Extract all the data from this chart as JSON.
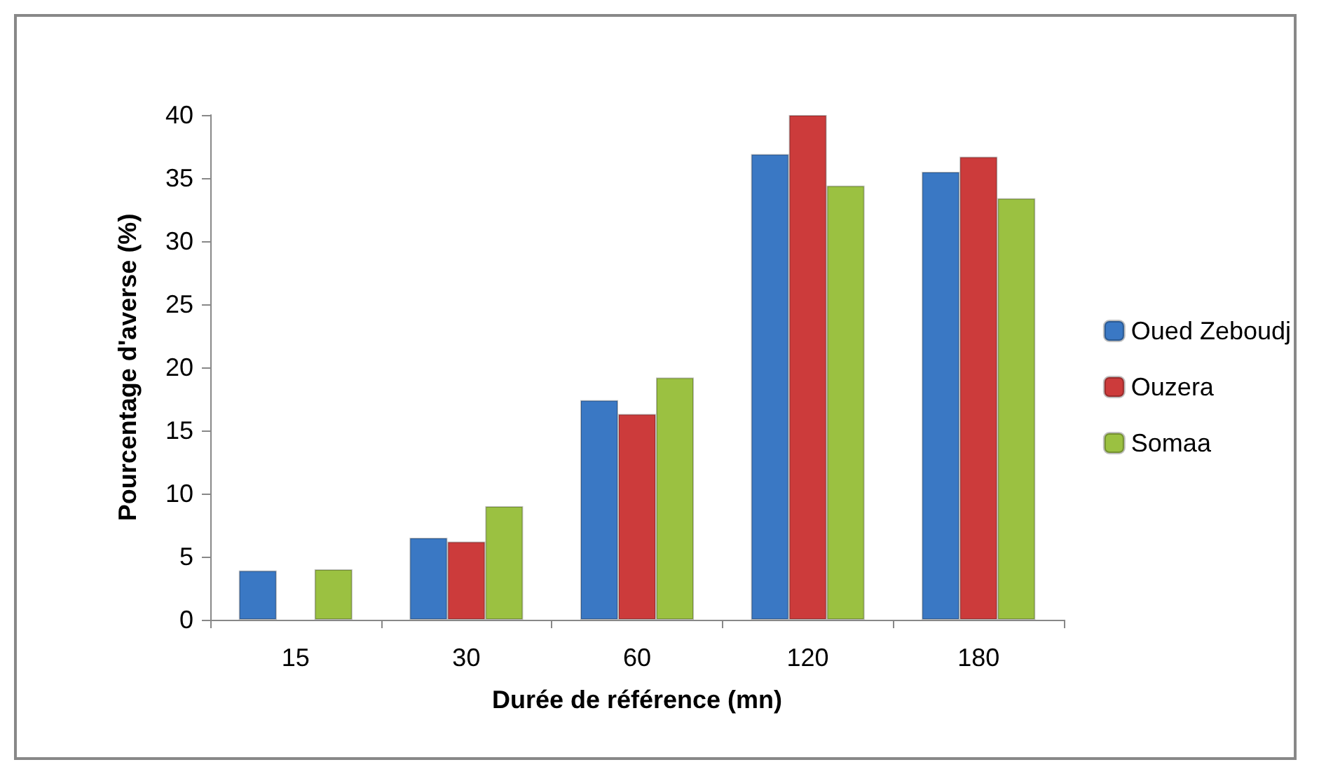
{
  "chart_data": {
    "type": "bar",
    "xlabel": "Durée de référence (mn)",
    "ylabel": "Pourcentage d'averse (%)",
    "categories": [
      "15",
      "30",
      "60",
      "120",
      "180"
    ],
    "series": [
      {
        "name": "Oued Zeboudj",
        "color": "#3a78c4",
        "values": [
          3.9,
          6.5,
          17.4,
          36.9,
          35.5
        ]
      },
      {
        "name": "Ouzera",
        "color": "#cc3b3b",
        "values": [
          null,
          6.2,
          16.3,
          40.0,
          36.7
        ]
      },
      {
        "name": "Somaa",
        "color": "#9bc141",
        "values": [
          4.0,
          9.0,
          19.2,
          34.4,
          33.4
        ]
      }
    ],
    "ylim": [
      0,
      40
    ],
    "yticks": [
      0,
      5,
      10,
      15,
      20,
      25,
      30,
      35,
      40
    ],
    "grid": false,
    "legend": "right"
  }
}
